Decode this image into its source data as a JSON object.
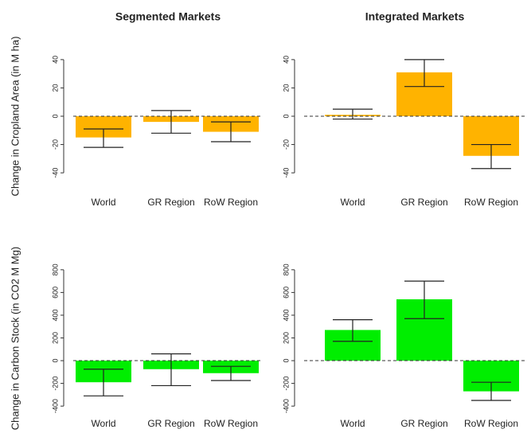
{
  "chart_data": [
    {
      "type": "bar",
      "title": "Segmented Markets",
      "ylabel": "Change in Cropland Area (in M ha)",
      "categories": [
        "World",
        "GR Region",
        "RoW Region"
      ],
      "values": [
        -15,
        -4,
        -11
      ],
      "lower": [
        -22,
        -12,
        -18
      ],
      "upper": [
        -9,
        4,
        -4
      ],
      "color": "#ffb300",
      "ylim": [
        -45,
        45
      ],
      "yticks": [
        -40,
        -20,
        0,
        20,
        40
      ]
    },
    {
      "type": "bar",
      "title": "Integrated Markets",
      "categories": [
        "World",
        "GR Region",
        "RoW Region"
      ],
      "values": [
        1,
        31,
        -28
      ],
      "lower": [
        -2,
        21,
        -37
      ],
      "upper": [
        5,
        40,
        -20
      ],
      "color": "#ffb300",
      "ylim": [
        -45,
        45
      ],
      "yticks": [
        -40,
        -20,
        0,
        20,
        40
      ]
    },
    {
      "type": "bar",
      "ylabel": "Change in Carbon Stock (in CO2 M Mg)",
      "categories": [
        "World",
        "GR Region",
        "RoW Region"
      ],
      "values": [
        -190,
        -75,
        -110
      ],
      "lower": [
        -310,
        -220,
        -175
      ],
      "upper": [
        -75,
        60,
        -50
      ],
      "color": "#00ee00",
      "ylim": [
        -420,
        820
      ],
      "yticks": [
        -400,
        -200,
        0,
        200,
        400,
        600,
        800
      ]
    },
    {
      "type": "bar",
      "categories": [
        "World",
        "GR Region",
        "RoW Region"
      ],
      "values": [
        270,
        540,
        -270
      ],
      "lower": [
        170,
        370,
        -350
      ],
      "upper": [
        360,
        700,
        -190
      ],
      "color": "#00ee00",
      "ylim": [
        -420,
        820
      ],
      "yticks": [
        -400,
        -200,
        0,
        200,
        400,
        600,
        800
      ]
    }
  ]
}
